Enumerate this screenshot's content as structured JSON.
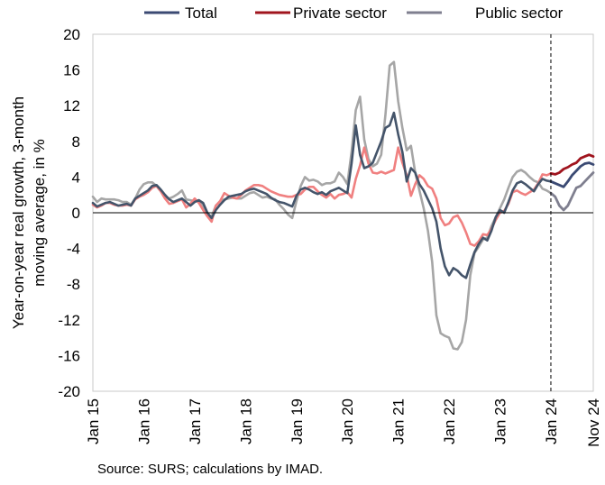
{
  "chart_data": {
    "type": "line",
    "ylabel": "Year-on-year real growth, 3-month moving average, in %",
    "ylabel_lines": [
      "Year-on-year real growth, 3-month",
      "moving average, in %"
    ],
    "ylim": [
      -20,
      20
    ],
    "yticks": [
      "20",
      "16",
      "12",
      "8",
      "4",
      "0",
      "-4",
      "-8",
      "-12",
      "-16",
      "-20"
    ],
    "ytick_values": [
      20,
      16,
      12,
      8,
      4,
      0,
      -4,
      -8,
      -12,
      -16,
      -20
    ],
    "xlim": [
      0,
      118
    ],
    "xticks": [
      "Jan 15",
      "Jan 16",
      "Jan 17",
      "Jan 18",
      "Jan 19",
      "Jan 20",
      "Jan 21",
      "Jan 22",
      "Jan 23",
      "Jan 24",
      "Nov 24"
    ],
    "xtick_values": [
      0,
      12,
      24,
      36,
      48,
      60,
      72,
      84,
      96,
      108,
      118
    ],
    "vline_at": 108,
    "grid": false,
    "legend_position": "top",
    "source": "Source: SURS; calculations by IMAD.",
    "series": [
      {
        "name": "Total",
        "color": "#44546a",
        "highlight_color": "#3b4a73",
        "values": [
          1.1,
          0.7,
          0.9,
          1.1,
          1.2,
          1.0,
          0.8,
          0.9,
          1.0,
          0.8,
          1.6,
          1.9,
          2.2,
          2.5,
          3.0,
          3.1,
          2.6,
          2.0,
          1.5,
          1.2,
          1.4,
          1.6,
          1.2,
          0.8,
          1.2,
          1.4,
          1.1,
          0.0,
          -0.6,
          0.3,
          0.9,
          1.4,
          1.8,
          1.9,
          2.0,
          2.1,
          2.4,
          2.6,
          2.7,
          2.5,
          2.3,
          2.1,
          1.7,
          1.4,
          1.2,
          1.1,
          0.9,
          0.7,
          1.9,
          2.6,
          2.8,
          2.6,
          2.3,
          2.1,
          2.3,
          2.0,
          2.4,
          2.6,
          2.8,
          2.5,
          2.2,
          5.5,
          9.8,
          6.5,
          5.0,
          5.2,
          5.6,
          6.8,
          8.0,
          9.5,
          9.8,
          11.2,
          8.8,
          6.8,
          3.5,
          5.0,
          4.5,
          3.2,
          2.5,
          1.5,
          0.5,
          -1.0,
          -4.0,
          -6.0,
          -7.0,
          -6.2,
          -6.5,
          -7.0,
          -7.3,
          -5.8,
          -4.4,
          -3.5,
          -2.8,
          -3.1,
          -2.0,
          -0.5,
          0.3,
          0.0,
          1.2,
          2.5,
          3.3,
          3.5,
          3.2,
          2.8,
          2.4,
          3.2,
          3.8,
          3.6,
          3.5,
          3.3,
          3.1,
          2.9,
          3.5,
          4.2,
          4.7,
          5.2,
          5.5,
          5.6,
          5.4
        ]
      },
      {
        "name": "Private sector",
        "color": "#f08080",
        "highlight_color": "#a0141e",
        "values": [
          0.9,
          0.6,
          0.8,
          1.1,
          1.1,
          0.9,
          0.8,
          0.8,
          0.9,
          0.8,
          1.5,
          1.8,
          2.0,
          2.3,
          2.8,
          3.0,
          2.4,
          1.6,
          1.0,
          1.1,
          1.3,
          1.5,
          0.6,
          1.0,
          1.6,
          1.1,
          0.3,
          -0.4,
          -1.0,
          0.8,
          1.3,
          2.2,
          1.9,
          1.7,
          1.6,
          2.0,
          2.5,
          2.8,
          3.1,
          3.1,
          3.0,
          2.7,
          2.4,
          2.2,
          2.0,
          1.9,
          1.8,
          1.8,
          2.0,
          2.1,
          2.6,
          2.9,
          2.9,
          2.4,
          2.0,
          1.7,
          2.1,
          1.6,
          2.0,
          2.1,
          2.3,
          1.7,
          3.8,
          5.3,
          7.3,
          5.5,
          4.5,
          4.4,
          4.6,
          4.4,
          4.6,
          4.8,
          7.3,
          5.6,
          4.2,
          1.9,
          3.2,
          4.2,
          3.8,
          3.0,
          2.7,
          1.6,
          -0.6,
          -1.4,
          -1.2,
          -0.5,
          -0.3,
          -1.1,
          -2.2,
          -3.5,
          -3.7,
          -3.2,
          -2.4,
          -2.5,
          -1.8,
          -0.8,
          0.0,
          0.2,
          1.0,
          2.3,
          2.5,
          2.2,
          2.0,
          2.3,
          2.6,
          3.3,
          4.3,
          4.2,
          4.4,
          4.3,
          4.5,
          4.9,
          5.1,
          5.4,
          5.6,
          6.1,
          6.3,
          6.5,
          6.3
        ]
      },
      {
        "name": "Public sector",
        "color": "#a6a6a6",
        "highlight_color": "#7f7f8f",
        "values": [
          1.8,
          1.2,
          1.6,
          1.5,
          1.5,
          1.5,
          1.4,
          1.2,
          1.2,
          0.9,
          1.6,
          2.6,
          3.2,
          3.4,
          3.4,
          3.0,
          2.4,
          1.8,
          1.6,
          1.8,
          2.1,
          2.5,
          1.5,
          1.4,
          1.3,
          1.4,
          0.8,
          -0.2,
          -0.4,
          0.8,
          1.3,
          1.5,
          1.6,
          1.7,
          1.6,
          1.6,
          1.9,
          2.2,
          2.3,
          2.0,
          1.7,
          1.8,
          1.6,
          1.5,
          0.9,
          0.4,
          -0.2,
          -0.6,
          1.3,
          3.0,
          4.0,
          3.6,
          3.7,
          3.5,
          3.1,
          3.3,
          3.3,
          3.5,
          4.5,
          4.0,
          3.2,
          6.8,
          11.5,
          13.0,
          8.2,
          6.0,
          5.2,
          5.5,
          6.5,
          11.0,
          16.5,
          16.9,
          12.5,
          9.5,
          7.0,
          7.5,
          4.5,
          2.5,
          0.5,
          -2.0,
          -5.5,
          -11.5,
          -13.5,
          -13.8,
          -14.0,
          -15.2,
          -15.3,
          -14.5,
          -12.0,
          -7.0,
          -4.5,
          -3.8,
          -3.0,
          -2.8,
          -1.5,
          -0.5,
          0.5,
          1.5,
          2.8,
          4.0,
          4.6,
          4.8,
          4.5,
          4.0,
          3.6,
          3.4,
          2.7,
          2.5,
          2.2,
          1.8,
          0.8,
          0.3,
          0.8,
          1.8,
          2.8,
          3.0,
          3.5,
          4.0,
          4.5
        ]
      }
    ]
  }
}
